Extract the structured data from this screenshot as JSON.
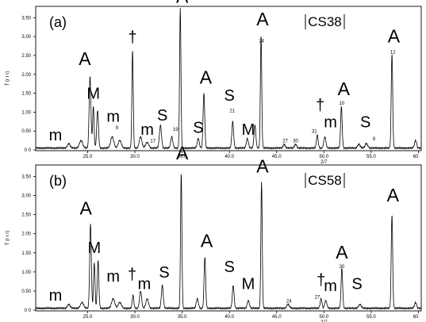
{
  "chart_data": [
    {
      "type": "line",
      "panel_tag": "(a)",
      "sample_id": "CS38",
      "y_axis_label": "T (r r r)",
      "x_ticks": [
        25.0,
        30.0,
        35.0,
        40.0,
        45.0,
        50.0,
        55.0,
        60.0
      ],
      "x_tick_labels": [
        "25.0",
        "30.0",
        "35.0",
        "40.0",
        "45.0",
        "50.0",
        "55.0",
        "60"
      ],
      "x_unit_label": "2/7",
      "y_ticks": [
        0,
        0.5,
        1.0,
        1.5,
        2.0,
        2.5,
        3.0,
        3.5
      ],
      "y_tick_labels": [
        "0 0",
        "0.50",
        "1.00",
        "1.50",
        "2.00",
        "2.50",
        "3.00",
        "3.50"
      ],
      "xlim": [
        19.5,
        60.3
      ],
      "ylim": [
        -0.02,
        3.8
      ],
      "baseline": 0.05,
      "peaks": [
        {
          "x": 23.0,
          "h": 0.12,
          "w": 0.25
        },
        {
          "x": 24.3,
          "h": 0.2,
          "w": 0.3
        },
        {
          "x": 25.25,
          "h": 1.9,
          "w": 0.17
        },
        {
          "x": 25.6,
          "h": 1.1,
          "w": 0.14
        },
        {
          "x": 26.05,
          "h": 1.0,
          "w": 0.17
        },
        {
          "x": 27.6,
          "h": 0.3,
          "w": 0.3
        },
        {
          "x": 28.4,
          "h": 0.2,
          "w": 0.3
        },
        {
          "x": 29.75,
          "h": 2.6,
          "w": 0.13
        },
        {
          "x": 30.6,
          "h": 0.3,
          "w": 0.25
        },
        {
          "x": 31.3,
          "h": 0.15,
          "w": 0.3
        },
        {
          "x": 32.7,
          "h": 0.6,
          "w": 0.2
        },
        {
          "x": 33.9,
          "h": 0.3,
          "w": 0.2
        },
        {
          "x": 34.8,
          "h": 3.7,
          "w": 0.13
        },
        {
          "x": 36.7,
          "h": 0.25,
          "w": 0.2
        },
        {
          "x": 37.3,
          "h": 1.45,
          "w": 0.16
        },
        {
          "x": 40.35,
          "h": 0.7,
          "w": 0.17
        },
        {
          "x": 41.9,
          "h": 0.25,
          "w": 0.2
        },
        {
          "x": 42.7,
          "h": 0.6,
          "w": 0.18
        },
        {
          "x": 43.35,
          "h": 3.0,
          "w": 0.13
        },
        {
          "x": 45.8,
          "h": 0.1,
          "w": 0.2
        },
        {
          "x": 47.0,
          "h": 0.1,
          "w": 0.2
        },
        {
          "x": 49.3,
          "h": 0.35,
          "w": 0.16
        },
        {
          "x": 50.1,
          "h": 0.3,
          "w": 0.2
        },
        {
          "x": 51.85,
          "h": 1.1,
          "w": 0.15
        },
        {
          "x": 53.7,
          "h": 0.1,
          "w": 0.25
        },
        {
          "x": 54.5,
          "h": 0.12,
          "w": 0.25
        },
        {
          "x": 57.2,
          "h": 2.5,
          "w": 0.14
        },
        {
          "x": 59.7,
          "h": 0.2,
          "w": 0.2
        }
      ],
      "phase_labels": [
        {
          "text": "m",
          "x": 21.6,
          "y": 0.25
        },
        {
          "text": "A",
          "x": 24.7,
          "y": 2.25
        },
        {
          "text": "M",
          "x": 25.6,
          "y": 1.35
        },
        {
          "text": "m",
          "x": 27.7,
          "y": 0.75
        },
        {
          "text": "†",
          "x": 29.75,
          "y": 2.85
        },
        {
          "text": "m",
          "x": 31.3,
          "y": 0.4
        },
        {
          "text": "S",
          "x": 32.9,
          "y": 0.78
        },
        {
          "text": "A",
          "x": 35.0,
          "y": 3.9
        },
        {
          "text": "S",
          "x": 36.7,
          "y": 0.45
        },
        {
          "text": "A",
          "x": 37.5,
          "y": 1.75
        },
        {
          "text": "S",
          "x": 40.0,
          "y": 1.3
        },
        {
          "text": "M",
          "x": 42.0,
          "y": 0.4
        },
        {
          "text": "A",
          "x": 43.5,
          "y": 3.3
        },
        {
          "text": "†",
          "x": 49.6,
          "y": 1.05
        },
        {
          "text": "m",
          "x": 50.7,
          "y": 0.6
        },
        {
          "text": "A",
          "x": 52.1,
          "y": 1.45
        },
        {
          "text": "S",
          "x": 54.4,
          "y": 0.6
        },
        {
          "text": "A",
          "x": 57.4,
          "y": 2.85
        }
      ],
      "peak_numbers": [
        {
          "text": "9",
          "x": 28.1,
          "y": 0.55
        },
        {
          "text": "17",
          "x": 31.9,
          "y": 0.2
        },
        {
          "text": "19",
          "x": 34.3,
          "y": 0.5
        },
        {
          "text": "21",
          "x": 40.3,
          "y": 1.0
        },
        {
          "text": "24",
          "x": 43.4,
          "y": 2.85
        },
        {
          "text": "27",
          "x": 45.9,
          "y": 0.2
        },
        {
          "text": "30",
          "x": 47.0,
          "y": 0.2
        },
        {
          "text": "31",
          "x": 49.0,
          "y": 0.45
        },
        {
          "text": "10",
          "x": 51.9,
          "y": 1.2
        },
        {
          "text": "9",
          "x": 55.3,
          "y": 0.25
        },
        {
          "text": "12",
          "x": 57.3,
          "y": 2.55
        }
      ]
    },
    {
      "type": "line",
      "panel_tag": "(b)",
      "sample_id": "CS58",
      "y_axis_label": "T (r r r)",
      "x_ticks": [
        25.0,
        30.0,
        35.0,
        40.0,
        45.0,
        50.0,
        55.0,
        60.0
      ],
      "x_tick_labels": [
        "25.0",
        "30.0",
        "35.0",
        "40.0",
        "45.0",
        "50.0",
        "55.0",
        "60"
      ],
      "x_unit_label": "2/7",
      "y_ticks": [
        0,
        0.5,
        1.0,
        1.5,
        2.0,
        2.5,
        3.0,
        3.5
      ],
      "y_tick_labels": [
        "0 0",
        "0.50",
        "1.00",
        "1.50",
        "2.00",
        "2.50",
        "3.00",
        "3.50"
      ],
      "xlim": [
        19.5,
        60.3
      ],
      "ylim": [
        -0.02,
        3.8
      ],
      "baseline": 0.05,
      "peaks": [
        {
          "x": 23.0,
          "h": 0.1,
          "w": 0.25
        },
        {
          "x": 24.4,
          "h": 0.15,
          "w": 0.3
        },
        {
          "x": 25.3,
          "h": 2.2,
          "w": 0.16
        },
        {
          "x": 25.7,
          "h": 1.2,
          "w": 0.14
        },
        {
          "x": 26.1,
          "h": 1.25,
          "w": 0.15
        },
        {
          "x": 27.7,
          "h": 0.25,
          "w": 0.3
        },
        {
          "x": 28.4,
          "h": 0.15,
          "w": 0.3
        },
        {
          "x": 29.8,
          "h": 0.35,
          "w": 0.15
        },
        {
          "x": 30.6,
          "h": 0.45,
          "w": 0.2
        },
        {
          "x": 31.3,
          "h": 0.25,
          "w": 0.25
        },
        {
          "x": 32.9,
          "h": 0.6,
          "w": 0.18
        },
        {
          "x": 34.9,
          "h": 3.55,
          "w": 0.13
        },
        {
          "x": 36.6,
          "h": 0.25,
          "w": 0.2
        },
        {
          "x": 37.4,
          "h": 1.35,
          "w": 0.15
        },
        {
          "x": 40.4,
          "h": 0.6,
          "w": 0.17
        },
        {
          "x": 42.0,
          "h": 0.2,
          "w": 0.2
        },
        {
          "x": 43.4,
          "h": 3.3,
          "w": 0.13
        },
        {
          "x": 46.2,
          "h": 0.1,
          "w": 0.25
        },
        {
          "x": 49.7,
          "h": 0.25,
          "w": 0.17
        },
        {
          "x": 50.2,
          "h": 0.2,
          "w": 0.2
        },
        {
          "x": 51.9,
          "h": 1.05,
          "w": 0.15
        },
        {
          "x": 53.8,
          "h": 0.1,
          "w": 0.25
        },
        {
          "x": 57.2,
          "h": 2.45,
          "w": 0.14
        },
        {
          "x": 59.7,
          "h": 0.15,
          "w": 0.2
        }
      ],
      "phase_labels": [
        {
          "text": "m",
          "x": 21.6,
          "y": 0.25
        },
        {
          "text": "A",
          "x": 24.8,
          "y": 2.5
        },
        {
          "text": "M",
          "x": 25.7,
          "y": 1.5
        },
        {
          "text": "m",
          "x": 27.7,
          "y": 0.75
        },
        {
          "text": "†",
          "x": 29.7,
          "y": 0.8
        },
        {
          "text": "m",
          "x": 31.0,
          "y": 0.55
        },
        {
          "text": "S",
          "x": 33.1,
          "y": 0.85
        },
        {
          "text": "A",
          "x": 35.0,
          "y": 3.95
        },
        {
          "text": "A",
          "x": 37.6,
          "y": 1.65
        },
        {
          "text": "S",
          "x": 40.0,
          "y": 1.0
        },
        {
          "text": "M",
          "x": 42.0,
          "y": 0.55
        },
        {
          "text": "A",
          "x": 43.5,
          "y": 3.6
        },
        {
          "text": "†",
          "x": 49.7,
          "y": 0.65
        },
        {
          "text": "m",
          "x": 50.7,
          "y": 0.5
        },
        {
          "text": "A",
          "x": 51.9,
          "y": 1.35
        },
        {
          "text": "S",
          "x": 53.5,
          "y": 0.55
        },
        {
          "text": "A",
          "x": 57.3,
          "y": 2.85
        }
      ],
      "peak_numbers": [
        {
          "text": "24",
          "x": 46.3,
          "y": 0.2
        },
        {
          "text": "27",
          "x": 49.3,
          "y": 0.3
        },
        {
          "text": "30",
          "x": 51.9,
          "y": 1.1
        }
      ]
    }
  ]
}
